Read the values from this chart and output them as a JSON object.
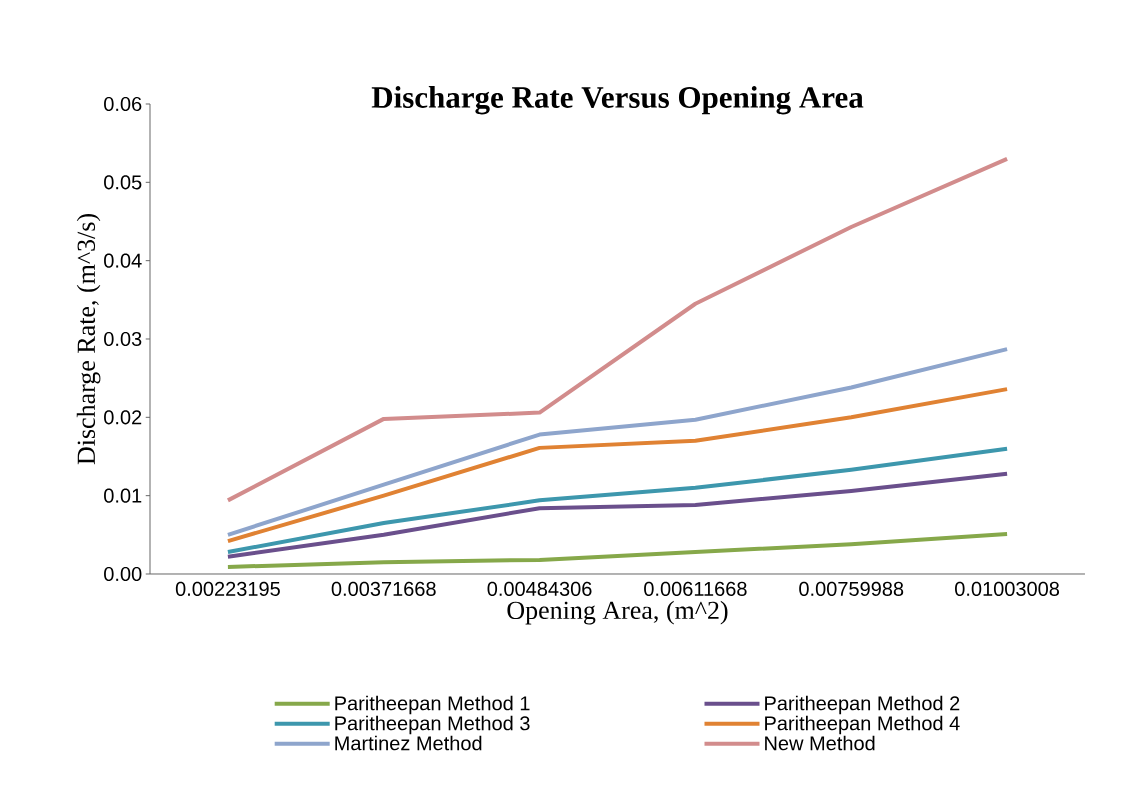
{
  "chart_data": {
    "type": "line",
    "title": "Discharge Rate  Versus Opening Area",
    "xlabel": "Opening Area, (m^2)",
    "ylabel": "Discharge Rate, (m^3/s)",
    "categories": [
      "0.00223195",
      "0.00371668",
      "0.00484306",
      "0.00611668",
      "0.00759988",
      "0.01003008"
    ],
    "series": [
      {
        "name": "Paritheepan Method 1",
        "color": "#86a84a",
        "values": [
          0.0009,
          0.0015,
          0.0018,
          0.0028,
          0.0038,
          0.0051
        ]
      },
      {
        "name": "Paritheepan Method 2",
        "color": "#6a4f8c",
        "values": [
          0.0022,
          0.005,
          0.0084,
          0.0088,
          0.0106,
          0.0128
        ]
      },
      {
        "name": "Paritheepan Method 3",
        "color": "#3d97ad",
        "values": [
          0.0028,
          0.0065,
          0.0094,
          0.011,
          0.0133,
          0.016
        ]
      },
      {
        "name": "Paritheepan Method 4",
        "color": "#e08233",
        "values": [
          0.0042,
          0.01,
          0.0161,
          0.017,
          0.02,
          0.0236
        ]
      },
      {
        "name": "Martinez Method",
        "color": "#8ea5cc",
        "values": [
          0.005,
          0.0114,
          0.0178,
          0.0197,
          0.0238,
          0.0287
        ]
      },
      {
        "name": "New Method",
        "color": "#d28c8c",
        "values": [
          0.0094,
          0.0198,
          0.0206,
          0.0345,
          0.0443,
          0.053
        ]
      }
    ],
    "ylim": [
      0,
      0.06
    ],
    "yticks": [
      {
        "value": 0,
        "label": "0.00"
      },
      0.01,
      0.02,
      0.03,
      0.04,
      0.05,
      0.06
    ],
    "grid": false,
    "legend": "bottom",
    "marker": "none",
    "line_style": "solid"
  }
}
